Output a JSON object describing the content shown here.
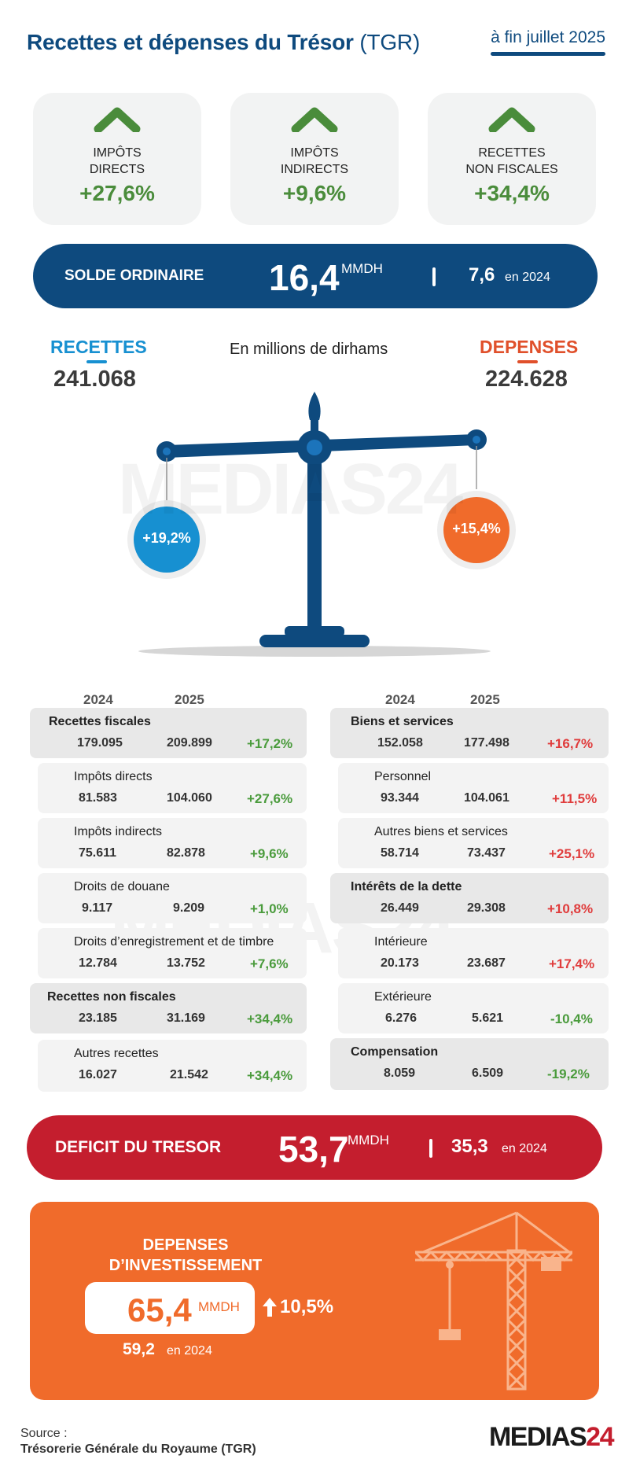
{
  "header": {
    "title": "Recettes et dépenses du Trésor",
    "title_suffix": "(TGR)",
    "date": "à fin juillet 2025"
  },
  "cards": [
    {
      "label_line1": "IMPÔTS",
      "label_line2": "DIRECTS",
      "value": "+27,6%"
    },
    {
      "label_line1": "IMPÔTS",
      "label_line2": "INDIRECTS",
      "value": "+9,6%"
    },
    {
      "label_line1": "RECETTES",
      "label_line2": "NON FISCALES",
      "value": "+34,4%"
    }
  ],
  "solde": {
    "label": "SOLDE ORDINAIRE",
    "value": "16,4",
    "unit": "MMDH",
    "prev_value": "7,6",
    "prev_label": "en 2024"
  },
  "balance": {
    "recettes_label": "RECETTES",
    "recettes_value": "241.068",
    "depenses_label": "DEPENSES",
    "depenses_value": "224.628",
    "unit_note": "En millions de dirhams",
    "recettes_growth": "+19,2%",
    "depenses_growth": "+15,4%"
  },
  "watermark": {
    "text": "MEDIAS",
    "num": "24"
  },
  "recettes_table": {
    "year1": "2024",
    "year2": "2025",
    "rows": [
      {
        "name": "Recettes fiscales",
        "v2024": "179.095",
        "v2025": "209.899",
        "change": "+17,2%"
      },
      {
        "name": "Impôts directs",
        "v2024": "81.583",
        "v2025": "104.060",
        "change": "+27,6%"
      },
      {
        "name": "Impôts indirects",
        "v2024": "75.611",
        "v2025": "82.878",
        "change": "+9,6%"
      },
      {
        "name": "Droits de douane",
        "v2024": "9.117",
        "v2025": "9.209",
        "change": "+1,0%"
      },
      {
        "name": "Droits d’enregistrement et de timbre",
        "v2024": "12.784",
        "v2025": "13.752",
        "change": "+7,6%"
      },
      {
        "name": "Recettes non fiscales",
        "v2024": "23.185",
        "v2025": "31.169",
        "change": "+34,4%"
      },
      {
        "name": "Autres recettes",
        "v2024": "16.027",
        "v2025": "21.542",
        "change": "+34,4%"
      }
    ]
  },
  "depenses_table": {
    "year1": "2024",
    "year2": "2025",
    "rows": [
      {
        "name": "Biens et services",
        "v2024": "152.058",
        "v2025": "177.498",
        "change": "+16,7%"
      },
      {
        "name": "Personnel",
        "v2024": "93.344",
        "v2025": "104.061",
        "change": "+11,5%"
      },
      {
        "name": "Autres biens et services",
        "v2024": "58.714",
        "v2025": "73.437",
        "change": "+25,1%"
      },
      {
        "name": "Intérêts de la dette",
        "v2024": "26.449",
        "v2025": "29.308",
        "change": "+10,8%"
      },
      {
        "name": "Intérieure",
        "v2024": "20.173",
        "v2025": "23.687",
        "change": "+17,4%"
      },
      {
        "name": "Extérieure",
        "v2024": "6.276",
        "v2025": "5.621",
        "change": "-10,4%"
      },
      {
        "name": "Compensation",
        "v2024": "8.059",
        "v2025": "6.509",
        "change": "-19,2%"
      }
    ]
  },
  "deficit": {
    "label": "DEFICIT DU TRESOR",
    "value": "53,7",
    "unit": "MMDH",
    "prev_value": "35,3",
    "prev_label": "en 2024"
  },
  "investissement": {
    "label_line1": "DEPENSES",
    "label_line2": "D’INVESTISSEMENT",
    "value": "65,4",
    "unit": "MMDH",
    "growth": "10,5%",
    "prev_value": "59,2",
    "prev_label": "en 2024"
  },
  "footer": {
    "source_label": "Source :",
    "source_value": "Trésorerie Générale du Royaume (TGR)",
    "logo_text": "MEDIAS",
    "logo_num": "24"
  },
  "colors": {
    "navy": "#0e4a7e",
    "green": "#4a8c3b",
    "blue": "#1790d1",
    "orange": "#f06b2b",
    "red": "#c41e2e"
  },
  "icons": [
    "chevron-up-icon",
    "balance-scale-icon",
    "arrow-up-icon",
    "crane-icon"
  ]
}
